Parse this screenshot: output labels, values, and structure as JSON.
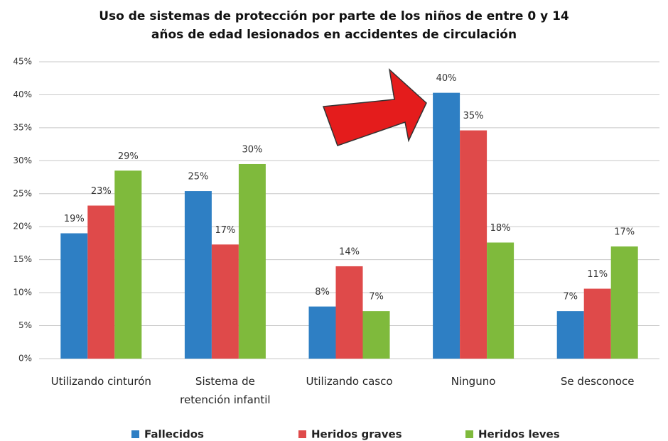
{
  "chart_data": {
    "type": "bar",
    "title": "Uso de sistemas de protección por parte de los niños de entre 0 y 14 años de edad lesionados en accidentes de circulación",
    "categories": [
      "Utilizando cinturón",
      "Sistema de retención  infantil",
      "Utilizando casco",
      "Ninguno",
      "Se desconoce"
    ],
    "series": [
      {
        "name": "Fallecidos",
        "color": "#2e7fc4",
        "values": [
          19,
          25.4,
          7.9,
          40.3,
          7.2
        ],
        "value_labels": [
          "19%",
          "25%",
          "8%",
          "40%",
          "7%"
        ]
      },
      {
        "name": "Heridos graves",
        "color": "#df4a4a",
        "values": [
          23.2,
          17.3,
          14,
          34.6,
          10.6
        ],
        "value_labels": [
          "23%",
          "17%",
          "14%",
          "35%",
          "11%"
        ]
      },
      {
        "name": "Heridos leves",
        "color": "#7fba3c",
        "values": [
          28.5,
          29.5,
          7.2,
          17.6,
          17
        ],
        "value_labels": [
          "29%",
          "30%",
          "7%",
          "18%",
          "17%"
        ]
      }
    ],
    "ylim": [
      0,
      45
    ],
    "yticks": [
      {
        "value": 0,
        "label": "0%"
      },
      {
        "value": 5,
        "label": "5%"
      },
      {
        "value": 10,
        "label": "10%"
      },
      {
        "value": 15,
        "label": "15%"
      },
      {
        "value": 20,
        "label": "20%"
      },
      {
        "value": 25,
        "label": "25%"
      },
      {
        "value": 30,
        "label": "30%"
      },
      {
        "value": 35,
        "label": "35%"
      },
      {
        "value": 40,
        "label": "40%"
      },
      {
        "value": 45,
        "label": "45%"
      }
    ],
    "grid": true
  }
}
